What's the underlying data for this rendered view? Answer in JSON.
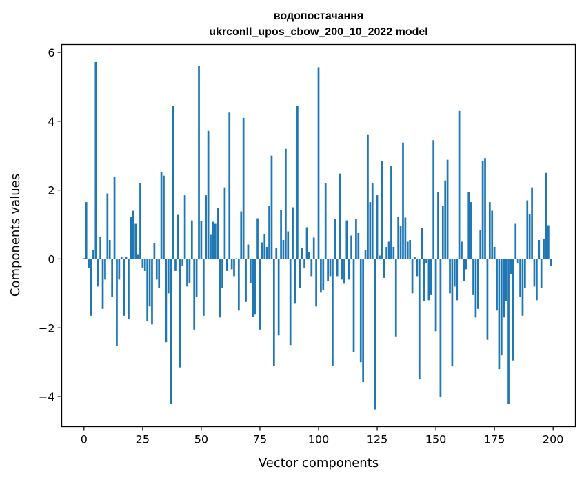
{
  "chart_data": {
    "type": "bar",
    "title": "водопостачання",
    "subtitle": "ukrconll_upos_cbow_200_10_2022 model",
    "xlabel": "Vector components",
    "ylabel": "Components values",
    "xlim": [
      -9.5,
      209.5
    ],
    "ylim": [
      -4.87,
      6.23
    ],
    "xticks": [
      0,
      25,
      50,
      75,
      100,
      125,
      150,
      175,
      200
    ],
    "yticks": [
      -4,
      -2,
      0,
      2,
      4,
      6
    ],
    "ytick_labels": [
      "−4",
      "−2",
      "0",
      "2",
      "4",
      "6"
    ],
    "grid": false,
    "bar_color": "#1f77b4",
    "x": [
      0,
      1,
      2,
      3,
      4,
      5,
      6,
      7,
      8,
      9,
      10,
      11,
      12,
      13,
      14,
      15,
      16,
      17,
      18,
      19,
      20,
      21,
      22,
      23,
      24,
      25,
      26,
      27,
      28,
      29,
      30,
      31,
      32,
      33,
      34,
      35,
      36,
      37,
      38,
      39,
      40,
      41,
      42,
      43,
      44,
      45,
      46,
      47,
      48,
      49,
      50,
      51,
      52,
      53,
      54,
      55,
      56,
      57,
      58,
      59,
      60,
      61,
      62,
      63,
      64,
      65,
      66,
      67,
      68,
      69,
      70,
      71,
      72,
      73,
      74,
      75,
      76,
      77,
      78,
      79,
      80,
      81,
      82,
      83,
      84,
      85,
      86,
      87,
      88,
      89,
      90,
      91,
      92,
      93,
      94,
      95,
      96,
      97,
      98,
      99,
      100,
      101,
      102,
      103,
      104,
      105,
      106,
      107,
      108,
      109,
      110,
      111,
      112,
      113,
      114,
      115,
      116,
      117,
      118,
      119,
      120,
      121,
      122,
      123,
      124,
      125,
      126,
      127,
      128,
      129,
      130,
      131,
      132,
      133,
      134,
      135,
      136,
      137,
      138,
      139,
      140,
      141,
      142,
      143,
      144,
      145,
      146,
      147,
      148,
      149,
      150,
      151,
      152,
      153,
      154,
      155,
      156,
      157,
      158,
      159,
      160,
      161,
      162,
      163,
      164,
      165,
      166,
      167,
      168,
      169,
      170,
      171,
      172,
      173,
      174,
      175,
      176,
      177,
      178,
      179,
      180,
      181,
      182,
      183,
      184,
      185,
      186,
      187,
      188,
      189,
      190,
      191,
      192,
      193,
      194,
      195,
      196,
      197,
      198,
      199
    ],
    "values": [
      0.02,
      1.65,
      -0.25,
      -1.65,
      0.25,
      5.72,
      -0.8,
      0.65,
      -1.45,
      -0.6,
      1.9,
      0.55,
      -1.1,
      2.38,
      -2.52,
      -0.6,
      0.05,
      -1.65,
      0.05,
      -1.75,
      1.22,
      1.4,
      1.02,
      0.12,
      2.2,
      -0.25,
      -0.35,
      -1.8,
      -1.38,
      -1.9,
      0.45,
      -0.6,
      -0.85,
      2.52,
      2.42,
      -2.42,
      -1.0,
      -4.22,
      4.45,
      -0.35,
      1.28,
      -3.15,
      -0.2,
      1.85,
      -0.8,
      -0.7,
      1.12,
      -2.05,
      -1.1,
      5.62,
      1.1,
      -1.65,
      1.85,
      3.72,
      0.7,
      1.08,
      1.02,
      1.48,
      -1.7,
      -0.85,
      2.08,
      -0.35,
      4.25,
      -0.3,
      -0.5,
      0.02,
      -1.5,
      1.38,
      4.1,
      -1.25,
      0.42,
      -0.7,
      -1.68,
      -1.62,
      1.18,
      -2.05,
      0.48,
      0.72,
      0.35,
      1.55,
      3.0,
      -3.1,
      0.32,
      -2.22,
      1.42,
      0.55,
      3.2,
      0.8,
      -2.5,
      1.5,
      -1.3,
      4.45,
      -0.85,
      0.32,
      -0.25,
      0.92,
      0.2,
      -0.5,
      0.62,
      -1.38,
      5.57,
      -0.98,
      -0.9,
      2.2,
      -0.65,
      -0.5,
      -3.1,
      1.15,
      -0.5,
      2.48,
      -0.6,
      -0.72,
      1.12,
      -0.6,
      0.68,
      -2.7,
      1.15,
      0.75,
      -3.0,
      -3.58,
      0.25,
      3.6,
      1.65,
      2.2,
      -4.37,
      1.85,
      0.1,
      2.85,
      -0.55,
      0.35,
      0.5,
      2.7,
      0.35,
      -2.25,
      1.22,
      0.95,
      3.38,
      1.2,
      0.5,
      0.55,
      -1.0,
      0.05,
      -0.5,
      -3.5,
      0.9,
      -1.22,
      -0.12,
      -1.2,
      -1.05,
      3.45,
      -2.1,
      1.95,
      -4.02,
      1.55,
      2.28,
      2.88,
      -1.0,
      -3.12,
      -0.8,
      -1.2,
      4.3,
      0.5,
      -0.65,
      -0.3,
      1.95,
      1.65,
      -1.05,
      -1.7,
      -1.45,
      0.85,
      2.85,
      2.93,
      -2.35,
      1.65,
      1.4,
      0.35,
      -1.5,
      -3.2,
      -2.8,
      -1.7,
      -1.22,
      -4.22,
      -0.45,
      -2.95,
      1.02,
      -0.12,
      -1.1,
      -1.65,
      -0.85,
      1.7,
      1.3,
      2.08,
      -0.8,
      -1.2,
      0.55,
      -0.85,
      0.58,
      2.5,
      0.98,
      -0.2
    ]
  }
}
